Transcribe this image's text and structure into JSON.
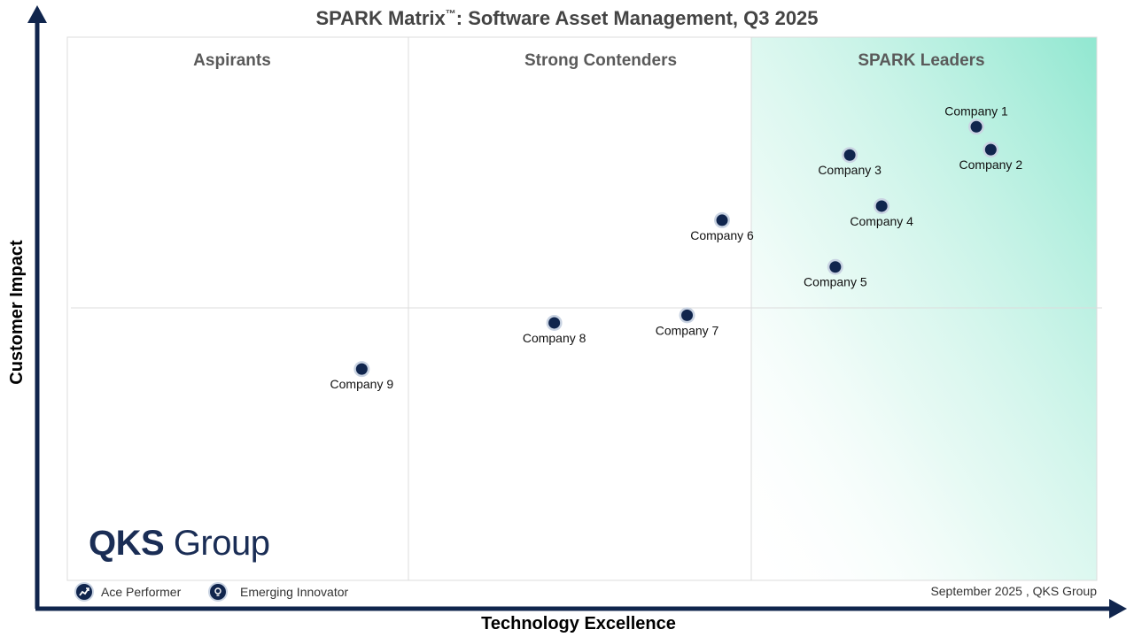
{
  "title": {
    "main": "SPARK Matrix",
    "tm": "™",
    "rest": ": Software Asset Management, Q3 2025"
  },
  "chart_data": {
    "type": "scatter",
    "title": "SPARK Matrix™: Software Asset Management, Q3 2025",
    "xlabel": "Technology Excellence",
    "ylabel": "Customer Impact",
    "xlim": [
      0,
      100
    ],
    "ylim": [
      0,
      100
    ],
    "grid": true,
    "quadrants": [
      "Aspirants",
      "Strong Contenders",
      "SPARK Leaders"
    ],
    "points": [
      {
        "label": "Company 1",
        "x": 88.3,
        "y": 83.5,
        "label_pos": "above"
      },
      {
        "label": "Company 2",
        "x": 89.7,
        "y": 79.3,
        "label_pos": "below"
      },
      {
        "label": "Company 3",
        "x": 76.0,
        "y": 78.3,
        "label_pos": "below"
      },
      {
        "label": "Company 4",
        "x": 79.1,
        "y": 68.9,
        "label_pos": "below"
      },
      {
        "label": "Company 5",
        "x": 74.6,
        "y": 57.7,
        "label_pos": "below"
      },
      {
        "label": "Company 6",
        "x": 63.6,
        "y": 66.3,
        "label_pos": "below"
      },
      {
        "label": "Company 7",
        "x": 60.2,
        "y": 48.8,
        "label_pos": "below"
      },
      {
        "label": "Company 8",
        "x": 47.3,
        "y": 47.4,
        "label_pos": "below"
      },
      {
        "label": "Company 9",
        "x": 28.6,
        "y": 38.9,
        "label_pos": "below"
      }
    ],
    "colors": {
      "point": "#10254d",
      "axis": "#10254d",
      "leader_gradient": "#7de3c8"
    }
  },
  "legend": {
    "ace_performer": "Ace Performer",
    "emerging_innovator": "Emerging Innovator"
  },
  "logo": {
    "bold": "QKS",
    "thin": "Group"
  },
  "credit": "September  2025 , QKS Group"
}
